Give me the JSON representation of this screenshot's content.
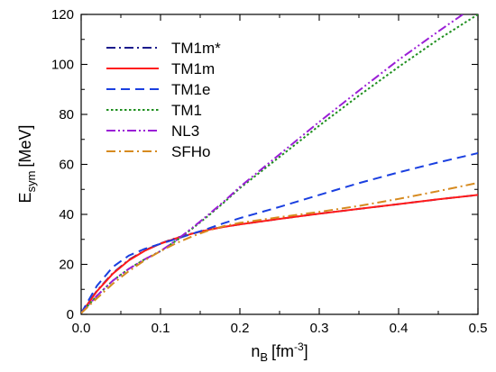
{
  "chart_data": {
    "type": "line",
    "ylabel": "E",
    "ylabel_sub": "sym",
    "ylabel_unit": "[MeV]",
    "xlabel": "n",
    "xlabel_sub": "B",
    "xlabel_unit_pre": "[fm",
    "xlabel_unit_sup": "-3",
    "xlabel_unit_post": "]",
    "xlim": [
      0.0,
      0.5
    ],
    "ylim": [
      0,
      120
    ],
    "xticks": [
      0.0,
      0.1,
      0.2,
      0.3,
      0.4,
      0.5
    ],
    "xtick_labels": [
      "0.0",
      "0.1",
      "0.2",
      "0.3",
      "0.4",
      "0.5"
    ],
    "yticks": [
      0,
      20,
      40,
      60,
      80,
      100,
      120
    ],
    "ytick_labels": [
      "0",
      "20",
      "40",
      "60",
      "80",
      "100",
      "120"
    ],
    "grid": false,
    "legend_position": "top-left",
    "series": [
      {
        "name": "TM1m*",
        "color": "#1a1a8c",
        "dash": "dashdot",
        "x": [
          0.0,
          0.02,
          0.04,
          0.06,
          0.08,
          0.1,
          0.12,
          0.14,
          0.16,
          0.18,
          0.2,
          0.25,
          0.3,
          0.35,
          0.4,
          0.45,
          0.5
        ],
        "y": [
          0.5,
          9.5,
          16.5,
          21.8,
          25.6,
          28.4,
          30.6,
          32.4,
          33.9,
          35.0,
          36.0,
          38.2,
          40.3,
          42.2,
          44.1,
          46.0,
          47.8
        ]
      },
      {
        "name": "TM1m",
        "color": "#ff1a1a",
        "dash": "solid",
        "x": [
          0.0,
          0.02,
          0.04,
          0.06,
          0.08,
          0.1,
          0.12,
          0.14,
          0.16,
          0.18,
          0.2,
          0.25,
          0.3,
          0.35,
          0.4,
          0.45,
          0.5
        ],
        "y": [
          0.5,
          9.3,
          16.3,
          21.6,
          25.4,
          28.3,
          30.5,
          32.3,
          33.8,
          35.0,
          36.0,
          38.2,
          40.3,
          42.2,
          44.1,
          46.0,
          47.8
        ]
      },
      {
        "name": "TM1e",
        "color": "#1a3fe0",
        "dash": "dash",
        "x": [
          0.0,
          0.02,
          0.04,
          0.06,
          0.08,
          0.1,
          0.12,
          0.14,
          0.16,
          0.18,
          0.2,
          0.25,
          0.3,
          0.35,
          0.4,
          0.45,
          0.5
        ],
        "y": [
          0.5,
          11.5,
          19.0,
          23.5,
          26.2,
          28.2,
          30.2,
          32.2,
          34.3,
          36.5,
          38.5,
          43.0,
          47.8,
          52.5,
          56.8,
          60.8,
          64.5
        ]
      },
      {
        "name": "TM1",
        "color": "#1f8f1f",
        "dash": "dot",
        "x": [
          0.0,
          0.02,
          0.04,
          0.06,
          0.08,
          0.1,
          0.12,
          0.14,
          0.16,
          0.18,
          0.2,
          0.25,
          0.3,
          0.35,
          0.4,
          0.45,
          0.5
        ],
        "y": [
          0.5,
          7.5,
          13.5,
          18.2,
          22.0,
          25.3,
          29.5,
          34.3,
          39.4,
          44.8,
          50.5,
          63.0,
          75.5,
          87.5,
          99.0,
          110.0,
          120.0
        ]
      },
      {
        "name": "NL3",
        "color": "#9a1fd6",
        "dash": "dashdotdot",
        "x": [
          0.0,
          0.02,
          0.04,
          0.06,
          0.08,
          0.1,
          0.12,
          0.14,
          0.16,
          0.18,
          0.2,
          0.25,
          0.3,
          0.35,
          0.4,
          0.45,
          0.49
        ],
        "y": [
          0.5,
          7.5,
          13.5,
          18.2,
          22.0,
          25.3,
          29.7,
          34.6,
          39.8,
          45.2,
          51.0,
          64.0,
          77.0,
          89.5,
          101.8,
          113.2,
          122.0
        ]
      },
      {
        "name": "SFHo",
        "color": "#d68a1f",
        "dash": "dashdot",
        "x": [
          0.0,
          0.02,
          0.04,
          0.06,
          0.08,
          0.1,
          0.12,
          0.14,
          0.16,
          0.18,
          0.2,
          0.25,
          0.3,
          0.35,
          0.4,
          0.45,
          0.5
        ],
        "y": [
          0.5,
          6.5,
          12.3,
          17.3,
          21.6,
          25.3,
          28.5,
          31.2,
          33.5,
          35.3,
          36.6,
          38.9,
          41.0,
          43.4,
          46.2,
          49.3,
          52.6
        ]
      }
    ]
  }
}
